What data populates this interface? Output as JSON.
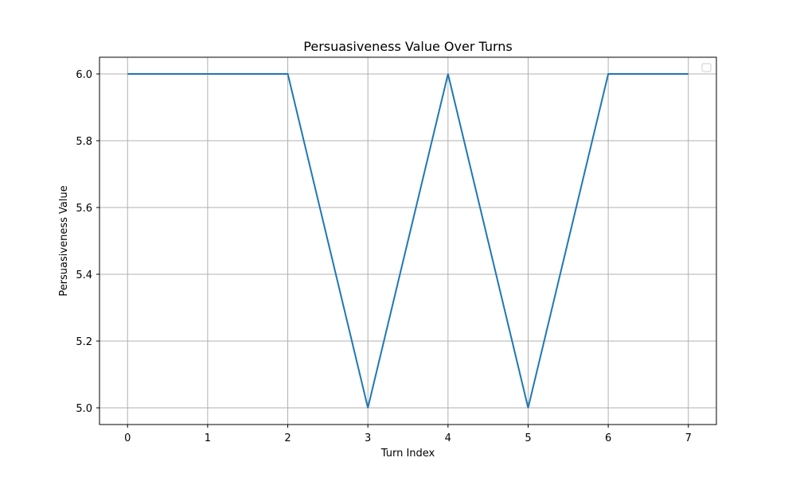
{
  "chart_data": {
    "type": "line",
    "title": "Persuasiveness Value Over Turns",
    "xlabel": "Turn Index",
    "ylabel": "Persuasiveness Value",
    "x": [
      0,
      1,
      2,
      3,
      4,
      5,
      6,
      7
    ],
    "series": [
      {
        "values": [
          6.0,
          6.0,
          6.0,
          5.0,
          6.0,
          5.0,
          6.0,
          6.0
        ],
        "color": "#1f77b4"
      }
    ],
    "xlim": [
      -0.35,
      7.35
    ],
    "ylim": [
      4.95,
      6.05
    ],
    "xticks": [
      "0",
      "1",
      "2",
      "3",
      "4",
      "5",
      "6",
      "7"
    ],
    "yticks": [
      "5.0",
      "5.2",
      "5.4",
      "5.6",
      "5.8",
      "6.0"
    ],
    "ytick_values": [
      5.0,
      5.2,
      5.4,
      5.6,
      5.8,
      6.0
    ],
    "grid": true,
    "legend": "upper right (empty)"
  }
}
